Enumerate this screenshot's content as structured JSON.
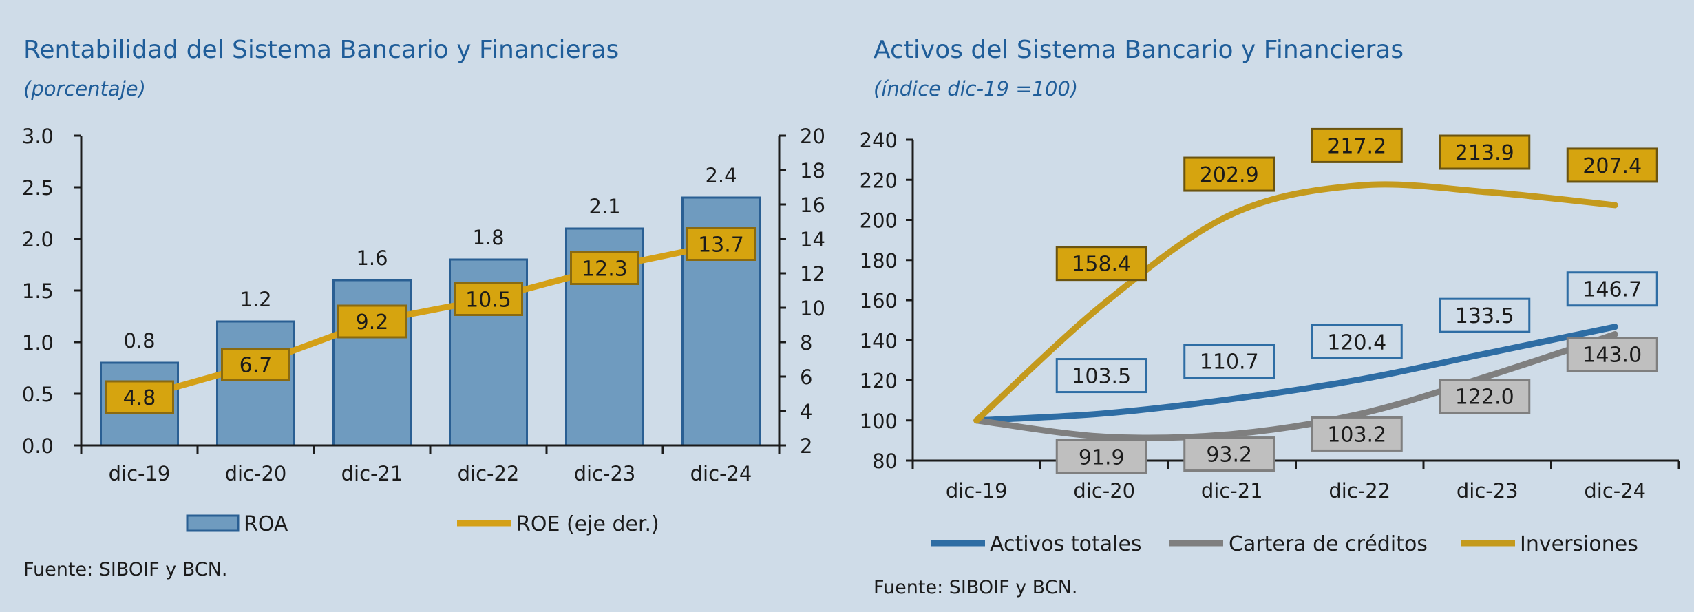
{
  "panels": [
    {
      "title": "Rentabilidad del Sistema Bancario y Financieras",
      "subtitle": "(porcentaje)",
      "source": "Fuente: SIBOIF y BCN."
    },
    {
      "title": "Activos del Sistema Bancario y Financieras",
      "subtitle": "(índice dic-19 =100)",
      "source": "Fuente: SIBOIF y BCN."
    }
  ],
  "chart_data": [
    {
      "type": "bar",
      "title": "Rentabilidad del Sistema Bancario y Financieras",
      "subtitle": "(porcentaje)",
      "categories": [
        "dic-19",
        "dic-20",
        "dic-21",
        "dic-22",
        "dic-23",
        "dic-24"
      ],
      "series": [
        {
          "name": "ROA",
          "type": "bar",
          "axis": "left",
          "values": [
            0.8,
            1.2,
            1.6,
            1.8,
            2.1,
            2.4
          ],
          "color": "#6f9bbf"
        },
        {
          "name": "ROE (eje der.)",
          "type": "line",
          "axis": "right",
          "values": [
            4.8,
            6.7,
            9.2,
            10.5,
            12.3,
            13.7
          ],
          "color": "#d4a017"
        }
      ],
      "ylim_left": [
        0,
        3.0
      ],
      "yticks_left": [
        "0.0",
        "0.5",
        "1.0",
        "1.5",
        "2.0",
        "2.5",
        "3.0"
      ],
      "ylim_right": [
        2,
        20
      ],
      "yticks_right": [
        "2",
        "4",
        "6",
        "8",
        "10",
        "12",
        "14",
        "16",
        "18",
        "20"
      ],
      "grid": false,
      "legend": "bottom"
    },
    {
      "type": "line",
      "title": "Activos del Sistema Bancario y Financieras",
      "subtitle": "(índice dic-19 =100)",
      "categories": [
        "dic-19",
        "dic-20",
        "dic-21",
        "dic-22",
        "dic-23",
        "dic-24"
      ],
      "series": [
        {
          "name": "Activos totales",
          "values": [
            100,
            103.5,
            110.7,
            120.4,
            133.5,
            146.7
          ],
          "color": "#2e6da4"
        },
        {
          "name": "Cartera de créditos",
          "values": [
            100,
            91.9,
            93.2,
            103.2,
            122.0,
            143.0
          ],
          "color": "#7f7f7f"
        },
        {
          "name": "Inversiones",
          "values": [
            100,
            158.4,
            202.9,
            217.2,
            213.9,
            207.4
          ],
          "color": "#c49a1d"
        }
      ],
      "data_labels": {
        "Activos totales": [
          "",
          "103.5",
          "110.7",
          "120.4",
          "133.5",
          "146.7"
        ],
        "Cartera de créditos": [
          "",
          "91.9",
          "93.2",
          "103.2",
          "122.0",
          "143.0"
        ],
        "Inversiones": [
          "",
          "158.4",
          "202.9",
          "217.2",
          "213.9",
          "207.4"
        ]
      },
      "ylim": [
        80,
        240
      ],
      "yticks": [
        "80",
        "100",
        "120",
        "140",
        "160",
        "180",
        "200",
        "220",
        "240"
      ],
      "grid": false,
      "legend": "bottom"
    }
  ]
}
